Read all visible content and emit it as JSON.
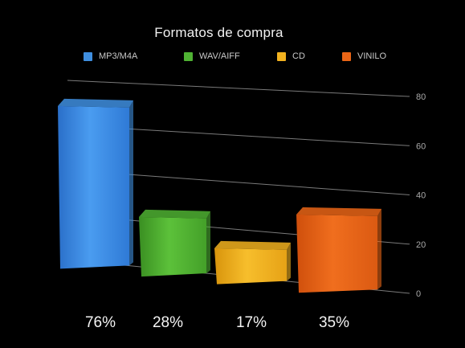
{
  "chart_data": {
    "type": "bar",
    "title": "Formatos de compra",
    "categories": [
      "MP3/M4A",
      "WAV/AIFF",
      "CD",
      "VINILO"
    ],
    "values": [
      76,
      28,
      17,
      35
    ],
    "value_labels": [
      "76%",
      "28%",
      "17%",
      "35%"
    ],
    "series": [
      {
        "name": "MP3/M4A",
        "values": [
          76,
          null,
          null,
          null
        ],
        "color": "#3f8fe0"
      },
      {
        "name": "WAV/AIFF",
        "values": [
          null,
          28,
          null,
          null
        ],
        "color": "#4fb233"
      },
      {
        "name": "CD",
        "values": [
          null,
          null,
          17,
          null
        ],
        "color": "#f2b21f"
      },
      {
        "name": "VINILO",
        "values": [
          null,
          null,
          null,
          35
        ],
        "color": "#ea6516"
      }
    ],
    "y_ticks": [
      0,
      20,
      40,
      60,
      80
    ],
    "ylim": [
      0,
      80
    ],
    "grid": true,
    "legend_position": "top",
    "xlabel": "",
    "ylabel": "",
    "style": "3d-perspective"
  }
}
